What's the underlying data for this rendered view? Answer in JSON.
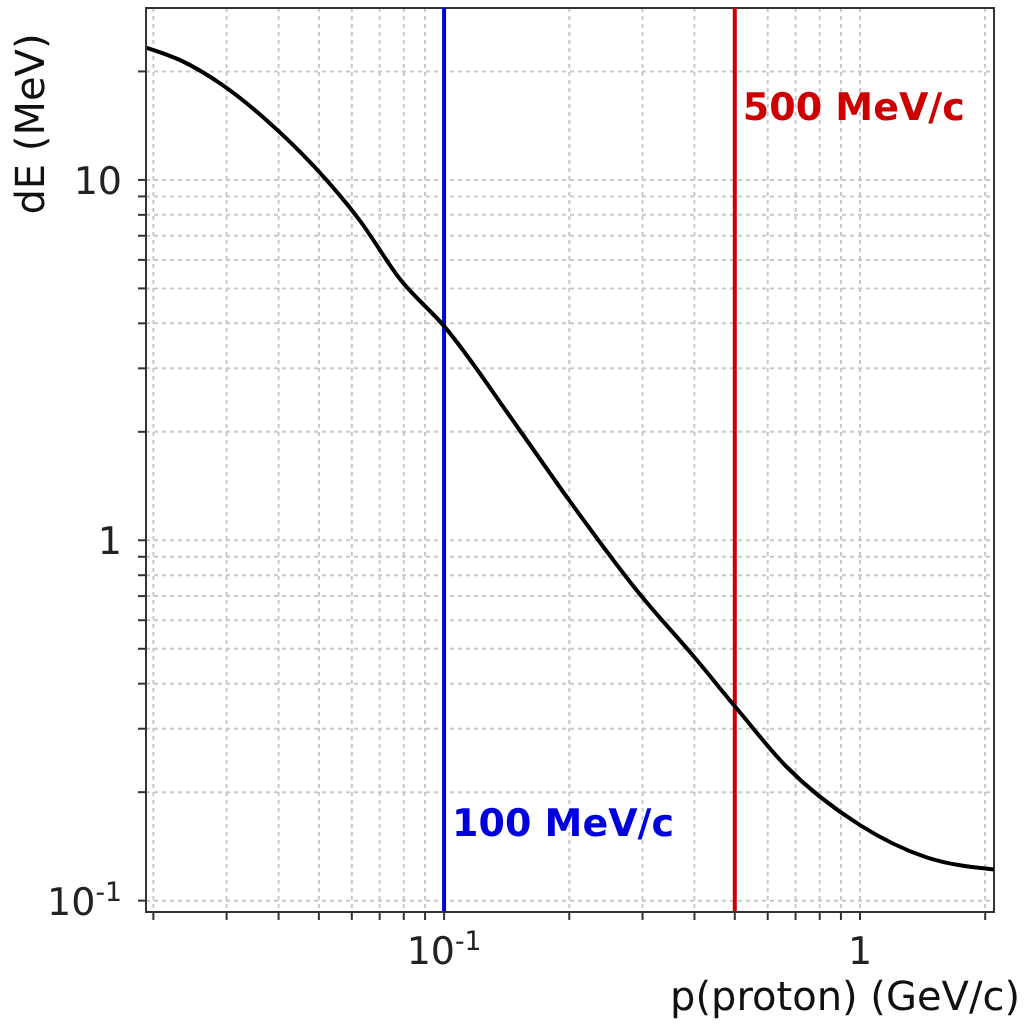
{
  "chart_data": {
    "type": "line",
    "xlabel": "p(proton) (GeV/c)",
    "ylabel": "dE (MeV)",
    "log": "xy",
    "grid": true,
    "marker": "none",
    "line_style": "solid",
    "xlim": [
      0.0192,
      2.1
    ],
    "ylim": [
      0.093,
      30
    ],
    "xticks": [
      {
        "value": 0.02,
        "label": null
      },
      {
        "value": 0.03,
        "label": null
      },
      {
        "value": 0.04,
        "label": null
      },
      {
        "value": 0.05,
        "label": null
      },
      {
        "value": 0.06,
        "label": null
      },
      {
        "value": 0.07,
        "label": null
      },
      {
        "value": 0.08,
        "label": null
      },
      {
        "value": 0.09,
        "label": null
      },
      {
        "value": 0.1,
        "label": "10$^{-1}$"
      },
      {
        "value": 0.2,
        "label": null
      },
      {
        "value": 0.3,
        "label": null
      },
      {
        "value": 0.4,
        "label": null
      },
      {
        "value": 0.5,
        "label": null
      },
      {
        "value": 0.6,
        "label": null
      },
      {
        "value": 0.7,
        "label": null
      },
      {
        "value": 0.8,
        "label": null
      },
      {
        "value": 0.9,
        "label": null
      },
      1,
      {
        "value": 2,
        "label": null
      }
    ],
    "yticks": [
      {
        "value": 0.1,
        "label": "10$^{-1}$"
      },
      {
        "value": 0.2,
        "label": null
      },
      {
        "value": 0.3,
        "label": null
      },
      {
        "value": 0.4,
        "label": null
      },
      {
        "value": 0.5,
        "label": null
      },
      {
        "value": 0.6,
        "label": null
      },
      {
        "value": 0.7,
        "label": null
      },
      {
        "value": 0.8,
        "label": null
      },
      {
        "value": 0.9,
        "label": null
      },
      1,
      {
        "value": 2,
        "label": null
      },
      {
        "value": 3,
        "label": null
      },
      {
        "value": 4,
        "label": null
      },
      {
        "value": 5,
        "label": null
      },
      {
        "value": 6,
        "label": null
      },
      {
        "value": 7,
        "label": null
      },
      {
        "value": 8,
        "label": null
      },
      {
        "value": 9,
        "label": null
      },
      10,
      {
        "value": 20,
        "label": null
      }
    ],
    "series": [
      {
        "color": "#000000",
        "x": [
          0.0192,
          0.0232,
          0.029,
          0.0373,
          0.0487,
          0.0628,
          0.0784,
          0.1,
          0.152,
          0.2,
          0.296,
          0.399,
          0.509,
          0.664,
          1,
          1.44,
          2.1
        ],
        "values": [
          23.3,
          21.5,
          18.5,
          14.7,
          10.9,
          7.7,
          5.3,
          3.93,
          2.02,
          1.29,
          0.707,
          0.475,
          0.338,
          0.236,
          0.162,
          0.132,
          0.122
        ]
      }
    ],
    "ref_lines": [
      {
        "axis": "x",
        "value": 0.1,
        "label": "100 MeV/c",
        "color": "#0000dd"
      },
      {
        "axis": "x",
        "value": 0.5,
        "label": "500 MeV/c",
        "color": "#cc0000"
      }
    ]
  }
}
